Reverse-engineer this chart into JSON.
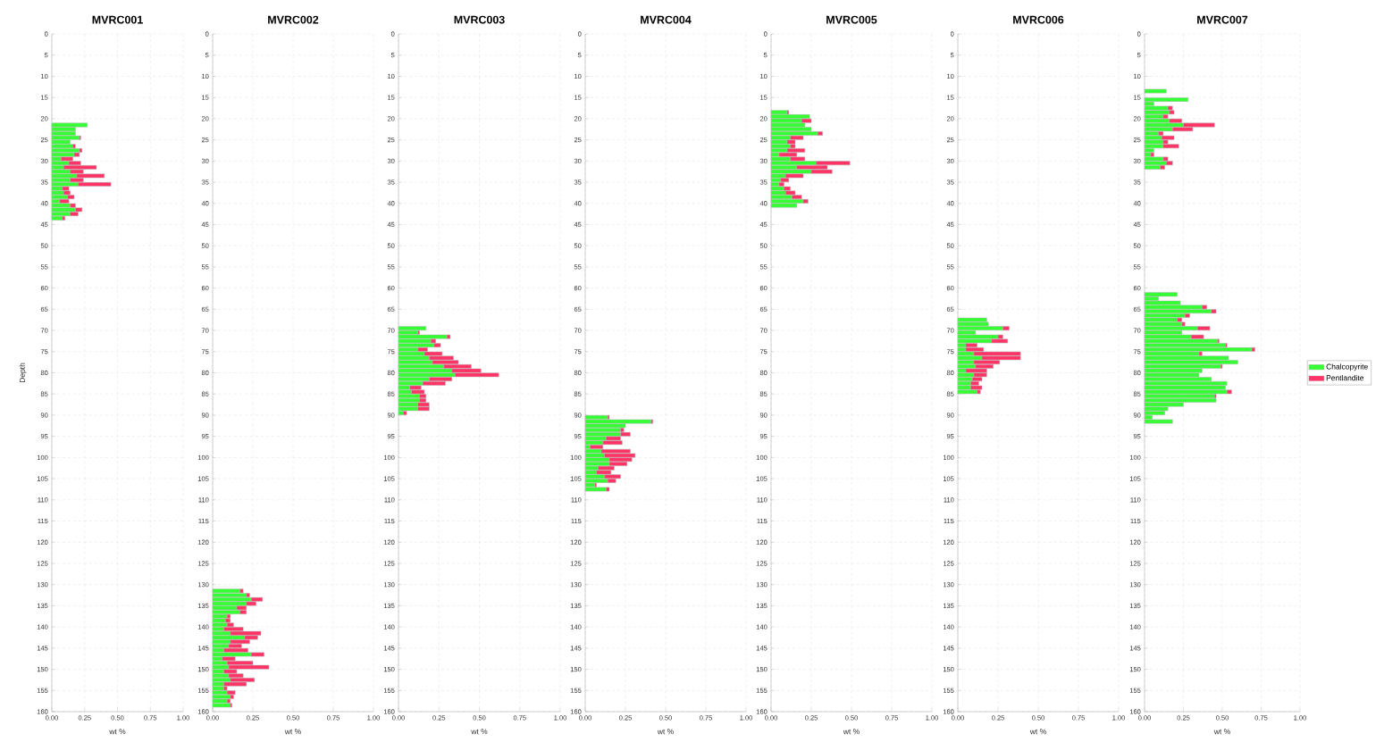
{
  "chart_data": [
    {
      "type": "bar",
      "orientation": "horizontal",
      "stacked": true,
      "title": "MVRC001",
      "xlabel": "wt %",
      "ylabel": "Depth",
      "grid": true,
      "x": [
        21.5,
        22.5,
        23.5,
        24.5,
        25.5,
        26.5,
        27.5,
        28.5,
        29.5,
        30.5,
        31.5,
        32.5,
        33.5,
        34.5,
        35.5,
        36.5,
        37.5,
        38.5,
        39.5,
        40.5,
        41.5,
        42.5,
        43.5
      ],
      "series": [
        {
          "color": "#33ff33",
          "values": [
            0.27,
            0.18,
            0.18,
            0.21,
            0.14,
            0.16,
            0.21,
            0.17,
            0.07,
            0.13,
            0.09,
            0.14,
            0.19,
            0.14,
            0.2,
            0.08,
            0.09,
            0.12,
            0.06,
            0.14,
            0.18,
            0.14,
            0.08
          ]
        },
        {
          "color": "#ff3366",
          "values": [
            null,
            null,
            null,
            0.01,
            null,
            0.02,
            0.02,
            0.04,
            0.09,
            0.09,
            0.25,
            0.1,
            0.21,
            0.1,
            0.25,
            0.05,
            0.05,
            0.05,
            0.07,
            0.04,
            0.05,
            0.06,
            0.02
          ]
        }
      ],
      "xlim": [
        0,
        1
      ],
      "xticks": [
        {
          "value": 0,
          "label": "0.00"
        },
        {
          "value": 0.25,
          "label": "0.25"
        },
        {
          "value": 0.5,
          "label": "0.50"
        },
        {
          "value": 0.75,
          "label": "0.75"
        },
        {
          "value": 1,
          "label": "1.00"
        }
      ],
      "ylim": [
        160,
        0
      ],
      "yticks": [
        0,
        5,
        10,
        15,
        20,
        25,
        30,
        35,
        40,
        45,
        50,
        55,
        60,
        65,
        70,
        75,
        80,
        85,
        90,
        95,
        100,
        105,
        110,
        115,
        120,
        125,
        130,
        135,
        140,
        145,
        150,
        155,
        160
      ]
    },
    {
      "type": "bar",
      "orientation": "horizontal",
      "stacked": true,
      "title": "MVRC002",
      "xlabel": "wt %",
      "grid": true,
      "x": [
        131.5,
        132.5,
        133.5,
        134.5,
        135.5,
        136.5,
        137.5,
        138.5,
        139.5,
        140.5,
        141.5,
        142.5,
        143.5,
        144.5,
        145.5,
        146.5,
        147.5,
        148.5,
        149.5,
        150.5,
        151.5,
        152.5,
        153.5,
        154.5,
        155.5,
        156.5,
        157.5,
        158.5
      ],
      "series": [
        {
          "color": "#33ff33",
          "values": [
            0.17,
            0.21,
            0.24,
            0.21,
            0.15,
            0.17,
            0.09,
            0.08,
            0.09,
            0.07,
            0.11,
            0.2,
            0.11,
            0.1,
            0.07,
            0.24,
            0.06,
            0.09,
            0.1,
            0.07,
            0.1,
            0.11,
            0.07,
            0.07,
            0.09,
            0.11,
            0.09,
            0.11
          ]
        },
        {
          "color": "#ff3366",
          "values": [
            0.02,
            0.02,
            0.07,
            0.06,
            0.06,
            0.04,
            0.02,
            0.03,
            0.04,
            0.12,
            0.19,
            0.08,
            0.12,
            0.08,
            0.15,
            0.08,
            0.08,
            0.16,
            0.25,
            0.08,
            0.09,
            0.15,
            0.14,
            0.02,
            0.05,
            0.02,
            0.02,
            0.01
          ]
        }
      ],
      "xlim": [
        0,
        1
      ],
      "xticks": [
        {
          "value": 0,
          "label": "0.00"
        },
        {
          "value": 0.25,
          "label": "0.25"
        },
        {
          "value": 0.5,
          "label": "0.50"
        },
        {
          "value": 0.75,
          "label": "0.75"
        },
        {
          "value": 1,
          "label": "1.00"
        }
      ],
      "ylim": [
        160,
        0
      ],
      "yticks": [
        0,
        5,
        10,
        15,
        20,
        25,
        30,
        35,
        40,
        45,
        50,
        55,
        60,
        65,
        70,
        75,
        80,
        85,
        90,
        95,
        100,
        105,
        110,
        115,
        120,
        125,
        130,
        135,
        140,
        145,
        150,
        155,
        160
      ]
    },
    {
      "type": "bar",
      "orientation": "horizontal",
      "stacked": true,
      "title": "MVRC003",
      "xlabel": "wt %",
      "grid": true,
      "x": [
        69.5,
        70.5,
        71.5,
        72.5,
        73.5,
        74.5,
        75.5,
        76.5,
        77.5,
        78.5,
        79.5,
        80.5,
        81.5,
        82.5,
        83.5,
        84.5,
        85.5,
        86.5,
        87.5,
        88.5,
        89.5
      ],
      "series": [
        {
          "color": "#33ff33",
          "values": [
            0.17,
            0.12,
            0.3,
            0.2,
            0.22,
            0.12,
            0.16,
            0.19,
            0.21,
            0.28,
            0.33,
            0.35,
            0.19,
            0.15,
            0.07,
            0.08,
            0.13,
            0.13,
            0.12,
            0.12,
            0.03
          ]
        },
        {
          "color": "#ff3366",
          "values": [
            null,
            0.01,
            0.02,
            0.03,
            0.04,
            0.06,
            0.11,
            0.15,
            0.16,
            0.17,
            0.18,
            0.27,
            0.14,
            0.14,
            0.07,
            0.08,
            0.04,
            0.04,
            0.07,
            0.07,
            0.02
          ]
        }
      ],
      "xlim": [
        0,
        1
      ],
      "xticks": [
        {
          "value": 0,
          "label": "0.00"
        },
        {
          "value": 0.25,
          "label": "0.25"
        },
        {
          "value": 0.5,
          "label": "0.50"
        },
        {
          "value": 0.75,
          "label": "0.75"
        },
        {
          "value": 1,
          "label": "1.00"
        }
      ],
      "ylim": [
        160,
        0
      ],
      "yticks": [
        0,
        5,
        10,
        15,
        20,
        25,
        30,
        35,
        40,
        45,
        50,
        55,
        60,
        65,
        70,
        75,
        80,
        85,
        90,
        95,
        100,
        105,
        110,
        115,
        120,
        125,
        130,
        135,
        140,
        145,
        150,
        155,
        160
      ]
    },
    {
      "type": "bar",
      "orientation": "horizontal",
      "stacked": true,
      "title": "MVRC004",
      "xlabel": "wt %",
      "grid": true,
      "x": [
        90.5,
        91.5,
        92.5,
        93.5,
        94.5,
        95.5,
        96.5,
        97.5,
        98.5,
        99.5,
        100.5,
        101.5,
        102.5,
        103.5,
        104.5,
        105.5,
        106.5,
        107.5
      ],
      "series": [
        {
          "color": "#33ff33",
          "values": [
            0.14,
            0.41,
            0.25,
            0.22,
            0.22,
            0.13,
            0.11,
            0.03,
            0.1,
            0.12,
            0.15,
            0.15,
            0.08,
            0.07,
            0.12,
            0.14,
            0.06,
            0.13
          ]
        },
        {
          "color": "#ff3366",
          "values": [
            0.01,
            0.01,
            null,
            0.02,
            0.06,
            0.09,
            0.12,
            0.08,
            0.18,
            0.19,
            0.14,
            0.11,
            0.1,
            0.09,
            0.1,
            0.05,
            0.01,
            0.02
          ]
        }
      ],
      "xlim": [
        0,
        1
      ],
      "xticks": [
        {
          "value": 0,
          "label": "0.00"
        },
        {
          "value": 0.25,
          "label": "0.25"
        },
        {
          "value": 0.5,
          "label": "0.50"
        },
        {
          "value": 0.75,
          "label": "0.75"
        },
        {
          "value": 1,
          "label": "1.00"
        }
      ],
      "ylim": [
        160,
        0
      ],
      "yticks": [
        0,
        5,
        10,
        15,
        20,
        25,
        30,
        35,
        40,
        45,
        50,
        55,
        60,
        65,
        70,
        75,
        80,
        85,
        90,
        95,
        100,
        105,
        110,
        115,
        120,
        125,
        130,
        135,
        140,
        145,
        150,
        155,
        160
      ]
    },
    {
      "type": "bar",
      "orientation": "horizontal",
      "stacked": true,
      "title": "MVRC005",
      "xlabel": "wt %",
      "grid": true,
      "x": [
        18.5,
        19.5,
        20.5,
        21.5,
        22.5,
        23.5,
        24.5,
        25.5,
        26.5,
        27.5,
        28.5,
        29.5,
        30.5,
        31.5,
        32.5,
        33.5,
        34.5,
        35.5,
        36.5,
        37.5,
        38.5,
        39.5,
        40.5
      ],
      "series": [
        {
          "color": "#33ff33",
          "values": [
            0.1,
            0.24,
            0.19,
            0.21,
            0.25,
            0.29,
            0.12,
            0.1,
            0.12,
            0.1,
            0.05,
            0.12,
            0.28,
            0.16,
            0.25,
            0.09,
            0.06,
            0.05,
            0.08,
            0.09,
            0.13,
            0.2,
            0.16
          ]
        },
        {
          "color": "#ff3366",
          "values": [
            0.01,
            null,
            0.06,
            null,
            null,
            0.03,
            0.08,
            0.05,
            0.03,
            0.11,
            0.11,
            0.09,
            0.21,
            0.19,
            0.13,
            0.11,
            0.05,
            0.03,
            0.04,
            0.06,
            0.06,
            0.03,
            null
          ]
        }
      ],
      "xlim": [
        0,
        1
      ],
      "xticks": [
        {
          "value": 0,
          "label": "0.00"
        },
        {
          "value": 0.25,
          "label": "0.25"
        },
        {
          "value": 0.5,
          "label": "0.50"
        },
        {
          "value": 0.75,
          "label": "0.75"
        },
        {
          "value": 1,
          "label": "1.00"
        }
      ],
      "ylim": [
        160,
        0
      ],
      "yticks": [
        0,
        5,
        10,
        15,
        20,
        25,
        30,
        35,
        40,
        45,
        50,
        55,
        60,
        65,
        70,
        75,
        80,
        85,
        90,
        95,
        100,
        105,
        110,
        115,
        120,
        125,
        130,
        135,
        140,
        145,
        150,
        155,
        160
      ]
    },
    {
      "type": "bar",
      "orientation": "horizontal",
      "stacked": true,
      "title": "MVRC006",
      "xlabel": "wt %",
      "grid": true,
      "x": [
        67.5,
        68.5,
        69.5,
        70.5,
        71.5,
        72.5,
        73.5,
        74.5,
        75.5,
        76.5,
        77.5,
        78.5,
        79.5,
        80.5,
        81.5,
        82.5,
        83.5,
        84.5
      ],
      "series": [
        {
          "color": "#33ff33",
          "values": [
            0.18,
            0.19,
            0.28,
            0.11,
            0.25,
            0.21,
            0.05,
            0.05,
            0.1,
            0.15,
            0.1,
            0.11,
            0.05,
            0.1,
            0.09,
            0.08,
            0.08,
            0.12
          ]
        },
        {
          "color": "#ff3366",
          "values": [
            null,
            null,
            0.04,
            null,
            0.03,
            0.1,
            0.07,
            0.11,
            0.29,
            0.24,
            0.16,
            0.11,
            0.13,
            0.08,
            0.06,
            0.05,
            0.07,
            0.02
          ]
        }
      ],
      "xlim": [
        0,
        1
      ],
      "xticks": [
        {
          "value": 0,
          "label": "0.00"
        },
        {
          "value": 0.25,
          "label": "0.25"
        },
        {
          "value": 0.5,
          "label": "0.50"
        },
        {
          "value": 0.75,
          "label": "0.75"
        },
        {
          "value": 1,
          "label": "1.00"
        }
      ],
      "ylim": [
        160,
        0
      ],
      "yticks": [
        0,
        5,
        10,
        15,
        20,
        25,
        30,
        35,
        40,
        45,
        50,
        55,
        60,
        65,
        70,
        75,
        80,
        85,
        90,
        95,
        100,
        105,
        110,
        115,
        120,
        125,
        130,
        135,
        140,
        145,
        150,
        155,
        160
      ]
    },
    {
      "type": "bar",
      "orientation": "horizontal",
      "stacked": true,
      "title": "MVRC007",
      "xlabel": "wt %",
      "grid": true,
      "legend": "right",
      "x": [
        13.5,
        15.5,
        16.5,
        17.5,
        18.5,
        19.5,
        20.5,
        21.5,
        22.5,
        23.5,
        24.5,
        25.5,
        26.5,
        27.5,
        28.5,
        29.5,
        30.5,
        31.5,
        61.5,
        62.5,
        63.5,
        64.5,
        65.5,
        66.5,
        67.5,
        68.5,
        69.5,
        70.5,
        71.5,
        72.5,
        73.5,
        74.5,
        75.5,
        76.5,
        77.5,
        78.5,
        79.5,
        80.5,
        81.5,
        82.5,
        83.5,
        84.5,
        85.5,
        86.5,
        87.5,
        88.5,
        89.5,
        90.5,
        91.5
      ],
      "series": [
        {
          "name": "Chalcopyrite",
          "color": "#33ff33",
          "values": [
            0.14,
            0.28,
            0.06,
            0.15,
            0.16,
            0.12,
            0.16,
            0.25,
            0.18,
            0.09,
            0.11,
            0.12,
            0.12,
            0.06,
            0.04,
            0.12,
            0.14,
            0.1,
            0.21,
            0.09,
            0.23,
            0.37,
            0.43,
            0.26,
            0.21,
            0.24,
            0.34,
            0.24,
            0.3,
            0.47,
            0.52,
            0.69,
            0.35,
            0.54,
            0.6,
            0.49,
            0.37,
            0.35,
            0.43,
            0.53,
            0.52,
            0.53,
            0.45,
            0.46,
            0.25,
            0.15,
            0.13,
            0.05,
            0.18
          ]
        },
        {
          "name": "Pentlandite",
          "color": "#ff3366",
          "values": [
            null,
            null,
            null,
            0.03,
            0.03,
            0.03,
            0.08,
            0.2,
            0.13,
            0.03,
            0.08,
            0.03,
            0.1,
            null,
            0.02,
            0.03,
            0.04,
            0.03,
            null,
            null,
            null,
            0.03,
            0.03,
            0.03,
            0.03,
            0.02,
            0.08,
            null,
            0.08,
            0.01,
            0.01,
            0.02,
            0.02,
            null,
            null,
            0.01,
            null,
            null,
            null,
            null,
            null,
            0.03,
            0.01,
            null,
            null,
            null,
            null,
            null,
            null
          ]
        }
      ],
      "xlim": [
        0,
        1
      ],
      "xticks": [
        {
          "value": 0,
          "label": "0.00"
        },
        {
          "value": 0.25,
          "label": "0.25"
        },
        {
          "value": 0.5,
          "label": "0.50"
        },
        {
          "value": 0.75,
          "label": "0.75"
        },
        {
          "value": 1,
          "label": "1.00"
        }
      ],
      "ylim": [
        160,
        0
      ],
      "yticks": [
        0,
        5,
        10,
        15,
        20,
        25,
        30,
        35,
        40,
        45,
        50,
        55,
        60,
        65,
        70,
        75,
        80,
        85,
        90,
        95,
        100,
        105,
        110,
        115,
        120,
        125,
        130,
        135,
        140,
        145,
        150,
        155,
        160
      ]
    }
  ]
}
